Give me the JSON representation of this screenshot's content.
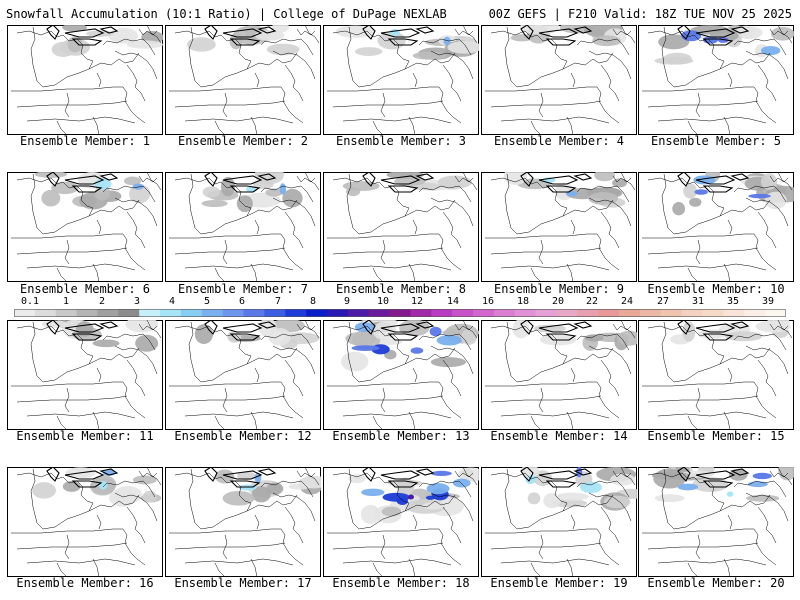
{
  "header": {
    "title": "Snowfall Accumulation (10:1 Ratio) | College of DuPage NEXLAB",
    "run_info": "00Z GEFS | F210 Valid: 18Z TUE NOV 25 2025"
  },
  "member_label": "Ensemble Member: ",
  "members": [
    {
      "id": "1",
      "label": "Ensemble Member: 1",
      "intensity": 1
    },
    {
      "id": "2",
      "label": "Ensemble Member: 2",
      "intensity": 1
    },
    {
      "id": "3",
      "label": "Ensemble Member: 3",
      "intensity": 2
    },
    {
      "id": "4",
      "label": "Ensemble Member: 4",
      "intensity": 1
    },
    {
      "id": "5",
      "label": "Ensemble Member: 5",
      "intensity": 3
    },
    {
      "id": "6",
      "label": "Ensemble Member: 6",
      "intensity": 2
    },
    {
      "id": "7",
      "label": "Ensemble Member: 7",
      "intensity": 2
    },
    {
      "id": "8",
      "label": "Ensemble Member: 8",
      "intensity": 1
    },
    {
      "id": "9",
      "label": "Ensemble Member: 9",
      "intensity": 2
    },
    {
      "id": "10",
      "label": "Ensemble Member: 10",
      "intensity": 3
    },
    {
      "id": "11",
      "label": "Ensemble Member: 11",
      "intensity": 1
    },
    {
      "id": "12",
      "label": "Ensemble Member: 12",
      "intensity": 1
    },
    {
      "id": "13",
      "label": "Ensemble Member: 13",
      "intensity": 4
    },
    {
      "id": "14",
      "label": "Ensemble Member: 14",
      "intensity": 1
    },
    {
      "id": "15",
      "label": "Ensemble Member: 15",
      "intensity": 1
    },
    {
      "id": "16",
      "label": "Ensemble Member: 16",
      "intensity": 2
    },
    {
      "id": "17",
      "label": "Ensemble Member: 17",
      "intensity": 2
    },
    {
      "id": "18",
      "label": "Ensemble Member: 18",
      "intensity": 5
    },
    {
      "id": "19",
      "label": "Ensemble Member: 19",
      "intensity": 3
    },
    {
      "id": "20",
      "label": "Ensemble Member: 20",
      "intensity": 3
    }
  ],
  "legend": {
    "ticks": [
      "0.1",
      "1",
      "2",
      "3",
      "4",
      "5",
      "6",
      "7",
      "8",
      "9",
      "10",
      "12",
      "14",
      "16",
      "18",
      "20",
      "22",
      "24",
      "27",
      "31",
      "35",
      "39"
    ],
    "colors": [
      "#ebebeb",
      "#dcdcdc",
      "#c8c8c8",
      "#b4b4b4",
      "#a0a0a0",
      "#8c8c8c",
      "#c8f0f8",
      "#a6e4f6",
      "#88cdf2",
      "#7ab0ee",
      "#6e96ec",
      "#5a78e8",
      "#3c5ee0",
      "#1e3cd8",
      "#0a1ec8",
      "#2818b4",
      "#4a1ca8",
      "#6a1c9a",
      "#821a8e",
      "#a02aa8",
      "#b83cc0",
      "#c852c8",
      "#d266cc",
      "#da7ed2",
      "#e090d4",
      "#e6a0d4",
      "#e6a8c4",
      "#e8a0b0",
      "#e89898",
      "#e8a898",
      "#ecb8a6",
      "#f0c4b0",
      "#f4d0c0",
      "#f6dac8",
      "#f8e4d8",
      "#faeee6",
      "#fcf6f0"
    ]
  }
}
